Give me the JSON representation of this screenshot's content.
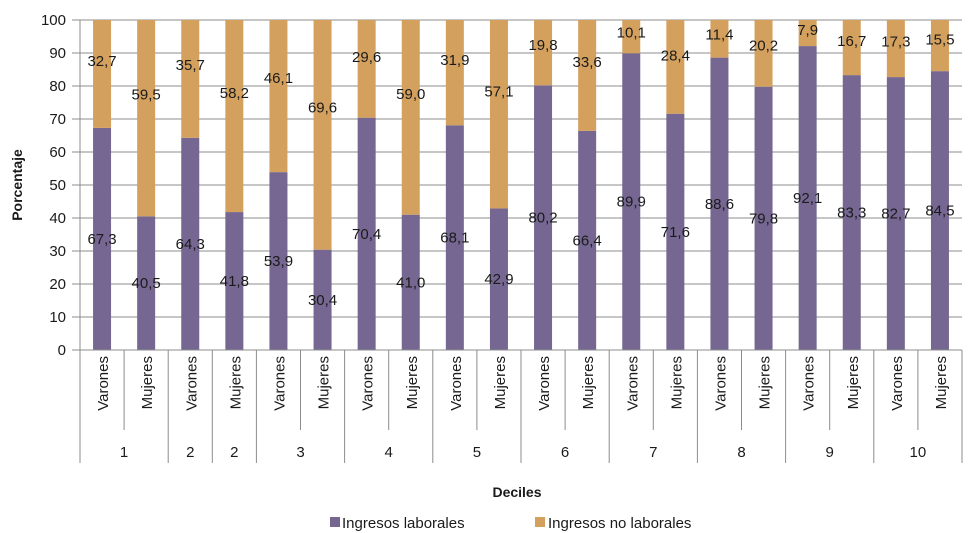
{
  "chart_data": {
    "type": "bar",
    "stacked": true,
    "ylabel": "Porcentaje",
    "xlabel": "Deciles",
    "ylim": [
      0,
      100
    ],
    "yticks": [
      0,
      10,
      20,
      30,
      40,
      50,
      60,
      70,
      80,
      90,
      100
    ],
    "grid": "horizontal",
    "legend_position": "bottom",
    "categories": [
      "Varones",
      "Mujeres",
      "Varones",
      "Mujeres",
      "Varones",
      "Mujeres",
      "Varones",
      "Mujeres",
      "Varones",
      "Mujeres",
      "Varones",
      "Mujeres",
      "Varones",
      "Mujeres",
      "Varones",
      "Mujeres",
      "Varones",
      "Mujeres",
      "Varones",
      "Mujeres"
    ],
    "groups": [
      {
        "label": "1",
        "span": 2
      },
      {
        "label": "2",
        "span": 1
      },
      {
        "label": "2",
        "span": 1
      },
      {
        "label": "3",
        "span": 2
      },
      {
        "label": "4",
        "span": 2
      },
      {
        "label": "5",
        "span": 2
      },
      {
        "label": "6",
        "span": 2
      },
      {
        "label": "7",
        "span": 2
      },
      {
        "label": "8",
        "span": 2
      },
      {
        "label": "9",
        "span": 2
      },
      {
        "label": "10",
        "span": 2
      }
    ],
    "series": [
      {
        "name": "Ingresos laborales",
        "color": "#756791",
        "values": [
          67.3,
          40.5,
          64.3,
          41.8,
          53.9,
          30.4,
          70.4,
          41.0,
          68.1,
          42.9,
          80.2,
          66.4,
          89.9,
          71.6,
          88.6,
          79.8,
          92.1,
          83.3,
          82.7,
          84.5
        ],
        "labels": [
          "67,3",
          "40,5",
          "64,3",
          "41,8",
          "53,9",
          "30,4",
          "70,4",
          "41,0",
          "68,1",
          "42,9",
          "80,2",
          "66,4",
          "89,9",
          "71,6",
          "88,6",
          "79,8",
          "92,1",
          "83,3",
          "82,7",
          "84,5"
        ]
      },
      {
        "name": "Ingresos no laborales",
        "color": "#d4a05e",
        "values": [
          32.7,
          59.5,
          35.7,
          58.2,
          46.1,
          69.6,
          29.6,
          59.0,
          31.9,
          57.1,
          19.8,
          33.6,
          10.1,
          28.4,
          11.4,
          20.2,
          7.9,
          16.7,
          17.3,
          15.5
        ],
        "labels": [
          "32,7",
          "59,5",
          "35,7",
          "58,2",
          "46,1",
          "69,6",
          "29,6",
          "59,0",
          "31,9",
          "57,1",
          "19,8",
          "33,6",
          "10,1",
          "28,4",
          "11,4",
          "20,2",
          "7,9",
          "16,7",
          "17,3",
          "15,5"
        ]
      }
    ]
  }
}
